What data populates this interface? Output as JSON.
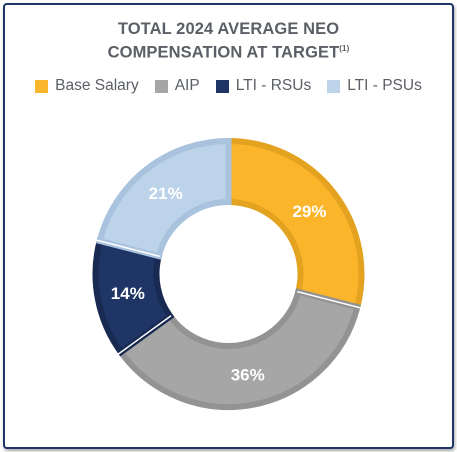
{
  "chart_data": {
    "type": "pie",
    "donut": true,
    "title": "TOTAL 2024 AVERAGE NEO",
    "title_line2": "COMPENSATION AT TARGET",
    "title_footnote": "(1)",
    "categories": [
      "Base Salary",
      "AIP",
      "LTI - RSUs",
      "LTI - PSUs"
    ],
    "values": [
      29,
      36,
      14,
      21
    ],
    "data_labels": [
      "29%",
      "36%",
      "14%",
      "21%"
    ],
    "colors": [
      "#fbb52b",
      "#a6a6a6",
      "#1f3566",
      "#bdd3ea"
    ],
    "border_colors": [
      "#e3a21f",
      "#939393",
      "#182a52",
      "#a9c2dd"
    ],
    "legend_position": "top"
  }
}
